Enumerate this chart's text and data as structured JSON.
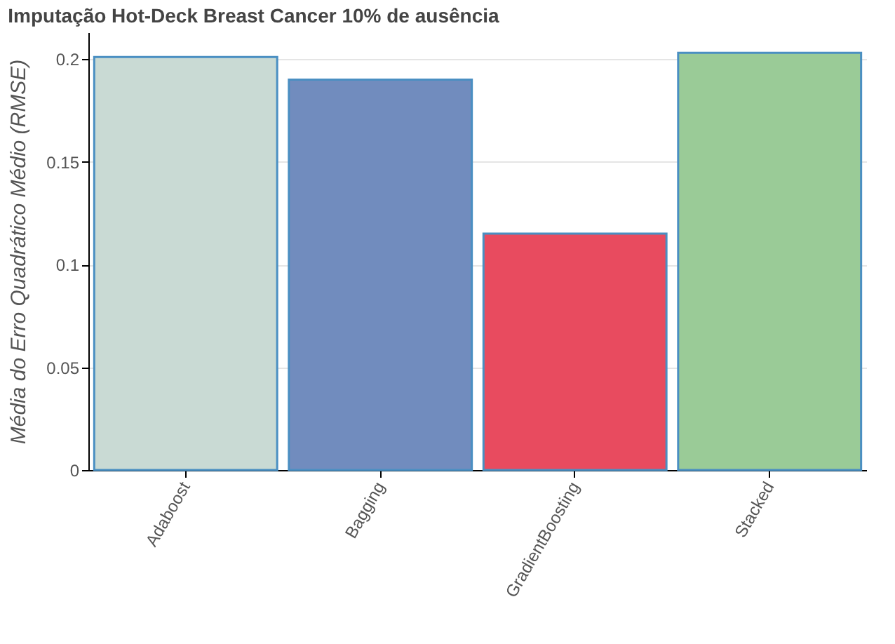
{
  "chart_data": {
    "type": "bar",
    "title": "Imputação Hot-Deck Breast Cancer 10% de ausência",
    "ylabel": "Média do Erro Quadrático Médio (RMSE)",
    "categories": [
      "Adaboost",
      "Bagging",
      "GradientBoosting",
      "Stacked"
    ],
    "values": [
      0.201,
      0.19,
      0.115,
      0.203
    ],
    "colors": [
      "#c9dad4",
      "#718cbe",
      "#e84b5f",
      "#9acb97"
    ],
    "ylim": [
      0,
      0.213
    ],
    "yticks": [
      0,
      0.05,
      0.1,
      0.15,
      0.2
    ],
    "grid": "y"
  }
}
